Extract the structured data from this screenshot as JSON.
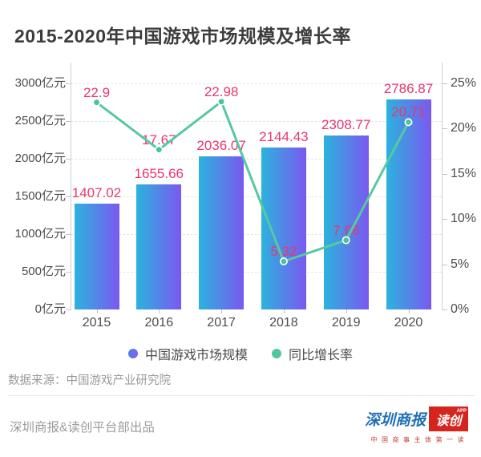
{
  "title": "2015-2020年中国游戏市场规模及增长率",
  "chart_data": {
    "type": "bar",
    "subtype": "bar+line combo",
    "categories": [
      "2015",
      "2016",
      "2017",
      "2018",
      "2019",
      "2020"
    ],
    "series": [
      {
        "name": "中国游戏市场规模",
        "type": "bar",
        "unit": "亿元",
        "values": [
          1407.02,
          1655.66,
          2036.07,
          2144.43,
          2308.77,
          2786.87
        ]
      },
      {
        "name": "同比增长率",
        "type": "line",
        "unit": "%",
        "values": [
          22.9,
          17.67,
          22.98,
          5.32,
          7.66,
          20.71
        ]
      }
    ],
    "left_axis": {
      "min": 0,
      "max": 3000,
      "step": 500,
      "tick_labels": [
        "0亿元",
        "500亿元",
        "1000亿元",
        "1500亿元",
        "2000亿元",
        "2500亿元",
        "3000亿元"
      ]
    },
    "right_axis": {
      "min": 0,
      "max": 25,
      "step": 5,
      "tick_labels": [
        "0%",
        "5%",
        "10%",
        "15%",
        "20%",
        "25%"
      ]
    },
    "grid": true,
    "legend_position": "bottom",
    "colors": {
      "bar_gradient_left": "#2bb3de",
      "bar_gradient_right": "#7b58f0",
      "line": "#55c9a0",
      "marker": "#49c598",
      "data_label": "#e8376d"
    }
  },
  "legend": {
    "items": [
      {
        "label": "中国游戏市场规模",
        "swatch": "bar-gradient"
      },
      {
        "label": "同比增长率",
        "swatch": "green"
      }
    ]
  },
  "source": "数据来源：中国游戏产业研究院",
  "footer": {
    "credit": "深圳商报&读创平台部出品",
    "logo": {
      "name": "深圳商报",
      "badge": "读创",
      "badge_sup": "APP",
      "slogan": "中国商事主体第一读"
    }
  }
}
